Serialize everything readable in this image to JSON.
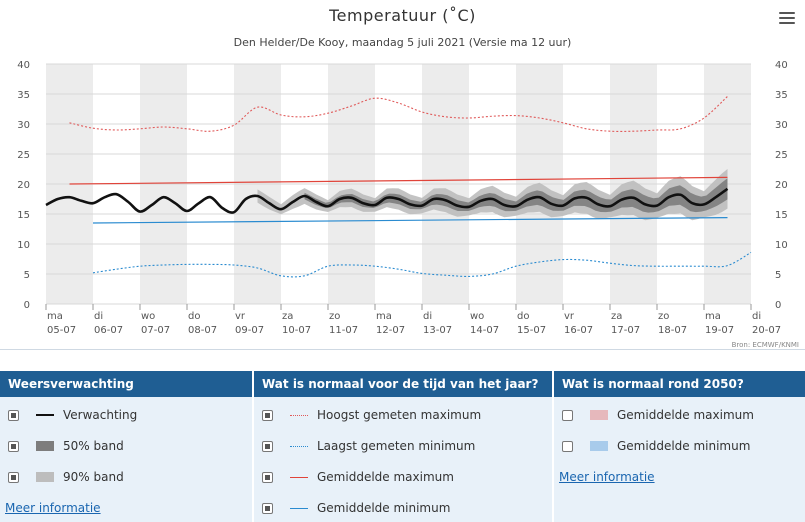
{
  "chart": {
    "title": "Temperatuur (˚C)",
    "subtitle": "Den Helder/De Kooy, maandag 5 juli 2021 (Versie ma 12 uur)",
    "credits": "Bron: ECMWF/KNMI"
  },
  "chart_data": {
    "type": "line",
    "y_axis": {
      "min": 0,
      "max": 40,
      "ticks": [
        0,
        5,
        10,
        15,
        20,
        25,
        30,
        35,
        40
      ],
      "grid": true,
      "dual": true
    },
    "x_axis": {
      "days": [
        {
          "dow": "ma",
          "date": "05-07"
        },
        {
          "dow": "di",
          "date": "06-07"
        },
        {
          "dow": "wo",
          "date": "07-07"
        },
        {
          "dow": "do",
          "date": "08-07"
        },
        {
          "dow": "vr",
          "date": "09-07"
        },
        {
          "dow": "za",
          "date": "10-07"
        },
        {
          "dow": "zo",
          "date": "11-07"
        },
        {
          "dow": "ma",
          "date": "12-07"
        },
        {
          "dow": "di",
          "date": "13-07"
        },
        {
          "dow": "wo",
          "date": "14-07"
        },
        {
          "dow": "do",
          "date": "15-07"
        },
        {
          "dow": "vr",
          "date": "16-07"
        },
        {
          "dow": "za",
          "date": "17-07"
        },
        {
          "dow": "zo",
          "date": "18-07"
        },
        {
          "dow": "ma",
          "date": "19-07"
        },
        {
          "dow": "di",
          "date": "20-07"
        }
      ],
      "shaded_days": "alternating"
    },
    "series": [
      {
        "name": "Hoogst gemeten maximum",
        "style": "dotted",
        "color": "#e05a5a",
        "x": [
          0.5,
          1.0,
          1.5,
          2.0,
          2.5,
          3.0,
          3.5,
          4.0,
          4.5,
          5.0,
          5.5,
          6.0,
          6.5,
          7.0,
          7.5,
          8.0,
          8.5,
          9.0,
          9.5,
          10.0,
          10.5,
          11.0,
          11.5,
          12.0,
          12.5,
          13.0,
          13.5,
          14.0,
          14.5
        ],
        "y": [
          30.2,
          29.3,
          29.0,
          29.2,
          29.5,
          29.2,
          28.8,
          29.8,
          32.8,
          31.5,
          31.2,
          31.8,
          33.0,
          34.3,
          33.5,
          32.0,
          31.2,
          31.0,
          31.3,
          31.4,
          31.0,
          30.2,
          29.2,
          28.8,
          28.8,
          29.0,
          29.2,
          31.0,
          34.6
        ]
      },
      {
        "name": "Gemiddelde maximum",
        "style": "solid",
        "color": "#e0443a",
        "x": [
          0.5,
          14.5
        ],
        "y": [
          20.0,
          21.1
        ]
      },
      {
        "name": "Verwachting",
        "style": "solid",
        "color": "#111111",
        "x": [
          0.0,
          0.25,
          0.5,
          0.75,
          1.0,
          1.25,
          1.5,
          1.75,
          2.0,
          2.25,
          2.5,
          2.75,
          3.0,
          3.25,
          3.5,
          3.75,
          4.0,
          4.25,
          4.5,
          4.75,
          5.0,
          5.25,
          5.5,
          5.75,
          6.0,
          6.25,
          6.5,
          6.75,
          7.0,
          7.25,
          7.5,
          7.75,
          8.0,
          8.25,
          8.5,
          8.75,
          9.0,
          9.25,
          9.5,
          9.75,
          10.0,
          10.25,
          10.5,
          10.75,
          11.0,
          11.25,
          11.5,
          11.75,
          12.0,
          12.25,
          12.5,
          12.75,
          13.0,
          13.25,
          13.5,
          13.75,
          14.0,
          14.25,
          14.5
        ],
        "y": [
          16.5,
          17.5,
          17.8,
          17.2,
          16.8,
          17.8,
          18.3,
          17.0,
          15.4,
          16.5,
          17.8,
          16.8,
          15.5,
          16.8,
          17.8,
          16.0,
          15.3,
          17.5,
          18.0,
          16.8,
          15.8,
          17.0,
          18.0,
          17.0,
          16.3,
          17.5,
          17.7,
          16.8,
          16.5,
          17.7,
          17.5,
          16.6,
          16.4,
          17.5,
          17.3,
          16.4,
          16.2,
          17.2,
          17.5,
          16.5,
          16.3,
          17.4,
          17.8,
          16.7,
          16.4,
          17.6,
          17.7,
          16.6,
          16.3,
          17.4,
          17.7,
          16.6,
          16.4,
          17.8,
          18.2,
          16.8,
          16.6,
          17.8,
          19.2
        ]
      },
      {
        "name": "Gemiddelde minimum",
        "style": "solid",
        "color": "#2a8bd0",
        "x": [
          1.0,
          14.5
        ],
        "y": [
          13.5,
          14.4
        ]
      },
      {
        "name": "Laagst gemeten minimum",
        "style": "dotted",
        "color": "#2a8bd0",
        "x": [
          1.0,
          1.5,
          2.0,
          2.5,
          3.0,
          3.5,
          4.0,
          4.5,
          5.0,
          5.5,
          6.0,
          6.5,
          7.0,
          7.5,
          8.0,
          8.5,
          9.0,
          9.5,
          10.0,
          10.5,
          11.0,
          11.5,
          12.0,
          12.5,
          13.0,
          13.5,
          14.0,
          14.5,
          15.0
        ],
        "y": [
          5.2,
          5.8,
          6.3,
          6.5,
          6.6,
          6.6,
          6.5,
          6.0,
          4.7,
          4.7,
          6.3,
          6.5,
          6.3,
          5.8,
          5.1,
          4.8,
          4.6,
          5.0,
          6.3,
          7.0,
          7.4,
          7.3,
          6.8,
          6.4,
          6.3,
          6.3,
          6.3,
          6.4,
          8.6
        ]
      }
    ],
    "bands": [
      {
        "name": "90% band",
        "color": "#bdbdbd",
        "from_x": 4.5,
        "to_x": 14.5,
        "half_width_start": 1.0,
        "half_width_end": 3.0
      },
      {
        "name": "50% band",
        "color": "#7d7d7d",
        "from_x": 5.5,
        "to_x": 14.5,
        "half_width_start": 0.5,
        "half_width_end": 1.6
      }
    ]
  },
  "legend": {
    "col1": {
      "title": "Weersverwachting",
      "items": [
        {
          "label": "Verwachting",
          "checked": true
        },
        {
          "label": "50% band",
          "checked": true
        },
        {
          "label": "90% band",
          "checked": true
        }
      ],
      "more": "Meer informatie"
    },
    "col2": {
      "title": "Wat is normaal voor de tijd van het jaar?",
      "items": [
        {
          "label": "Hoogst gemeten maximum",
          "checked": true
        },
        {
          "label": "Laagst gemeten minimum",
          "checked": true
        },
        {
          "label": "Gemiddelde maximum",
          "checked": true
        },
        {
          "label": "Gemiddelde minimum",
          "checked": true
        }
      ]
    },
    "col3": {
      "title": "Wat is normaal rond 2050?",
      "items": [
        {
          "label": "Gemiddelde maximum",
          "checked": false
        },
        {
          "label": "Gemiddelde minimum",
          "checked": false
        }
      ],
      "more": "Meer informatie"
    }
  },
  "colors": {
    "header_blue": "#1f5e93",
    "legend_bg": "#e8f1f9",
    "max_2050": "#e6b8bc",
    "min_2050": "#a8cbeb"
  }
}
